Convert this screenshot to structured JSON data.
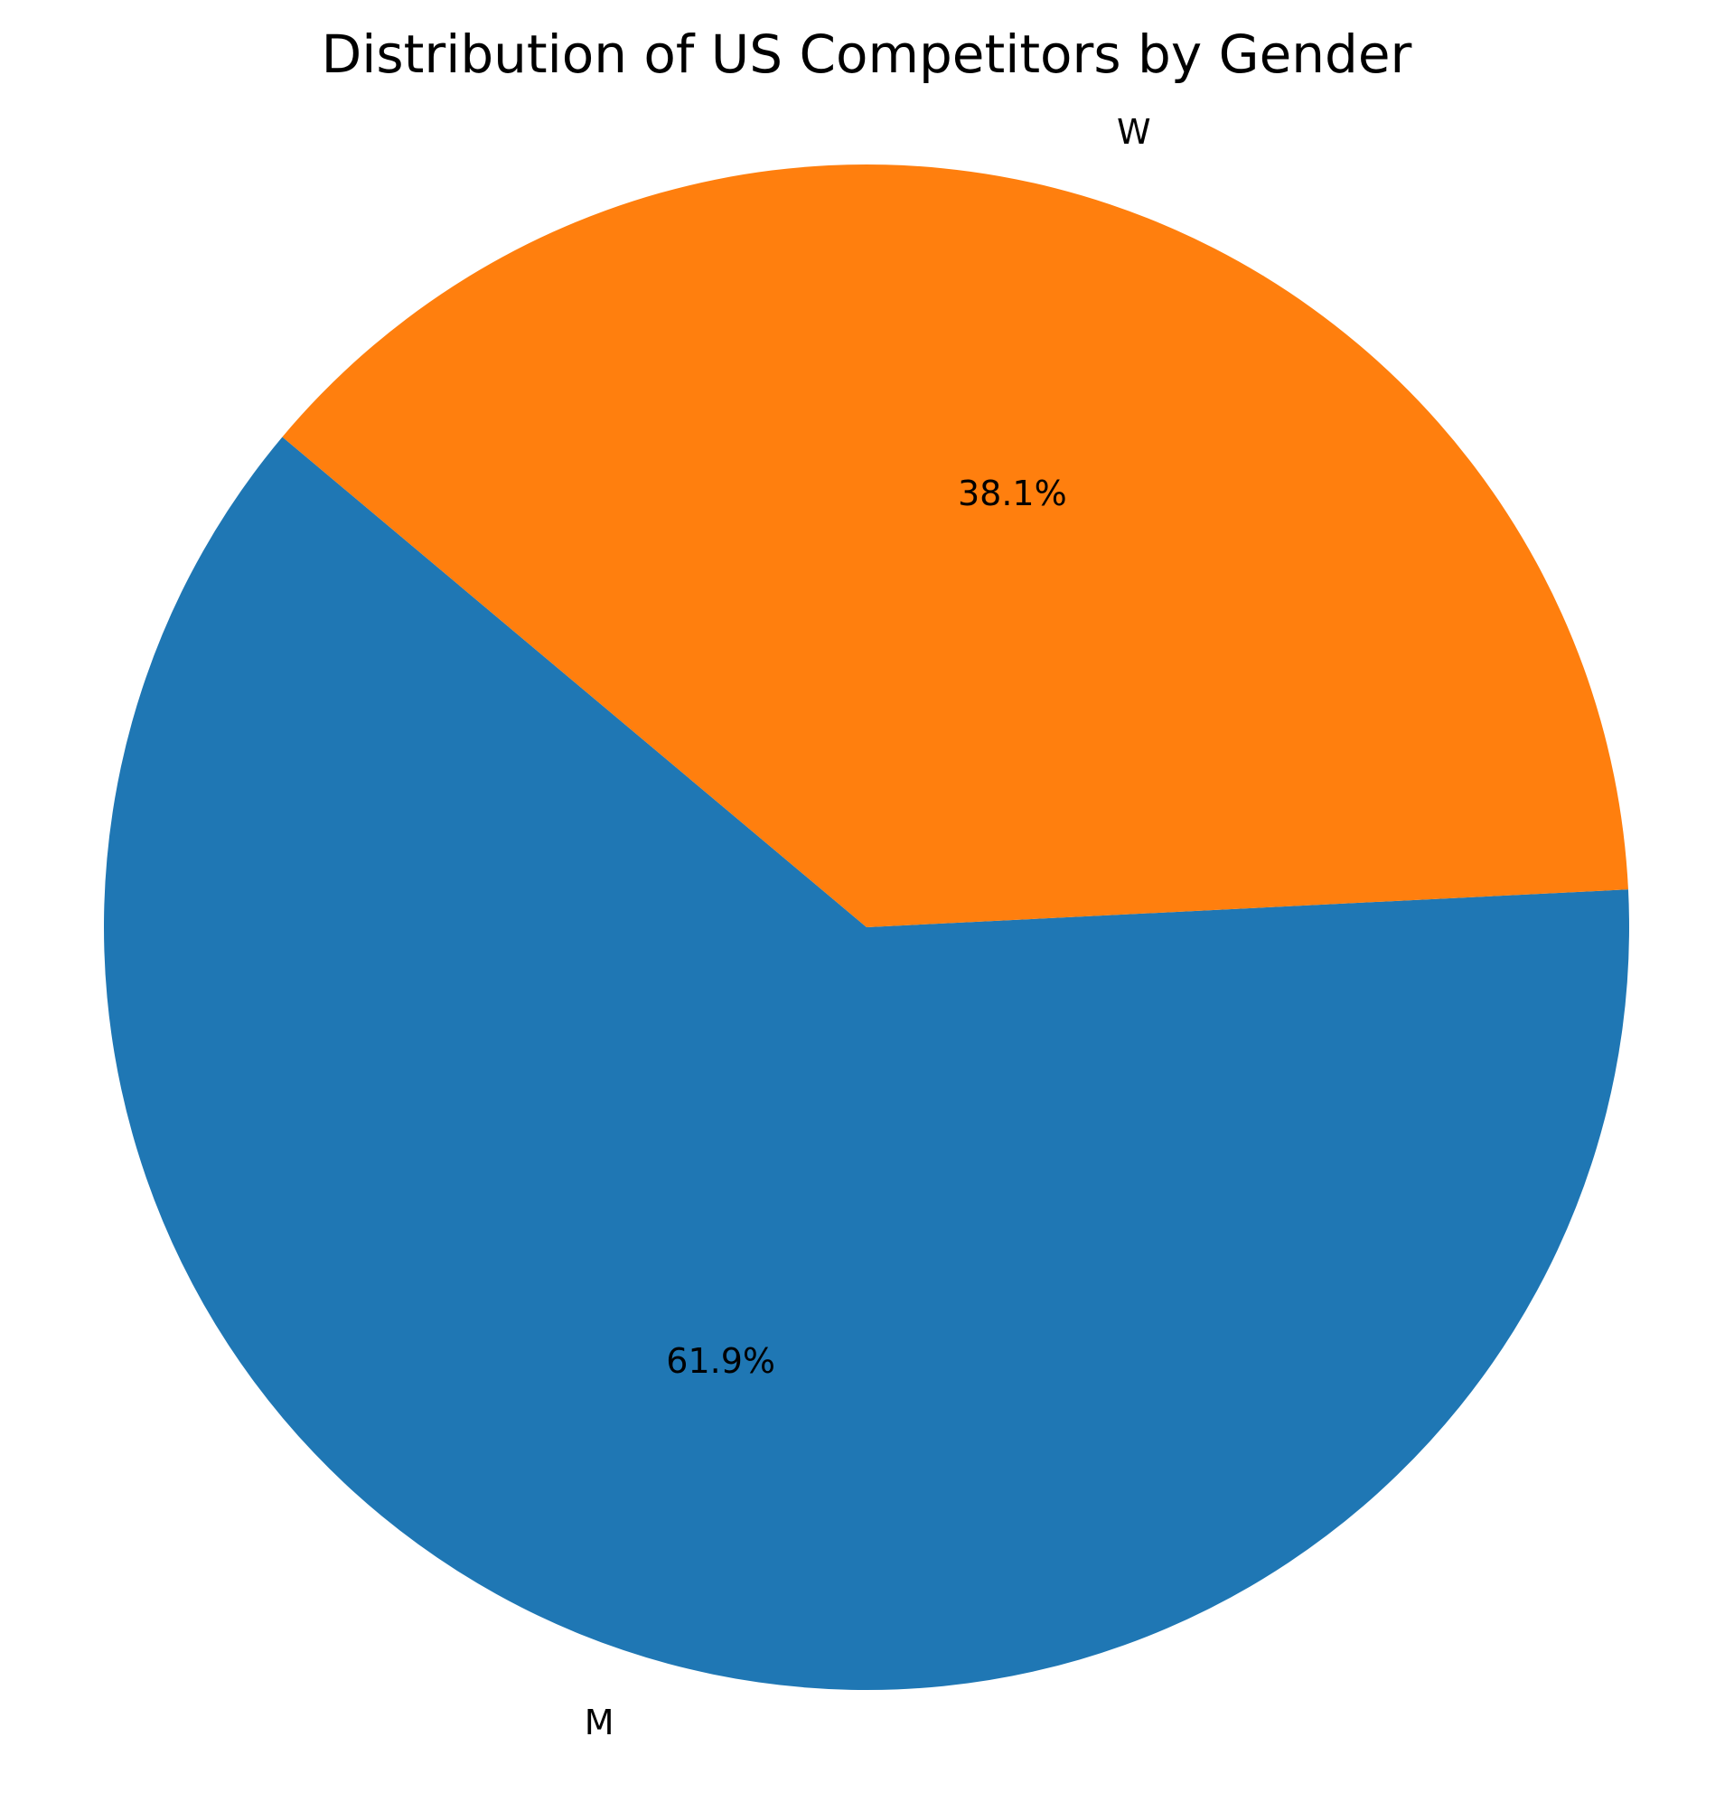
{
  "chart_data": {
    "type": "pie",
    "title": "Distribution of US Competitors by Gender",
    "slices": [
      {
        "label": "M",
        "percent_label": "61.9%",
        "value": 61.9,
        "color": "#1f77b4"
      },
      {
        "label": "W",
        "percent_label": "38.1%",
        "value": 38.1,
        "color": "#ff7f0e"
      }
    ],
    "start_angle_deg": 140,
    "direction": "counterclockwise"
  }
}
